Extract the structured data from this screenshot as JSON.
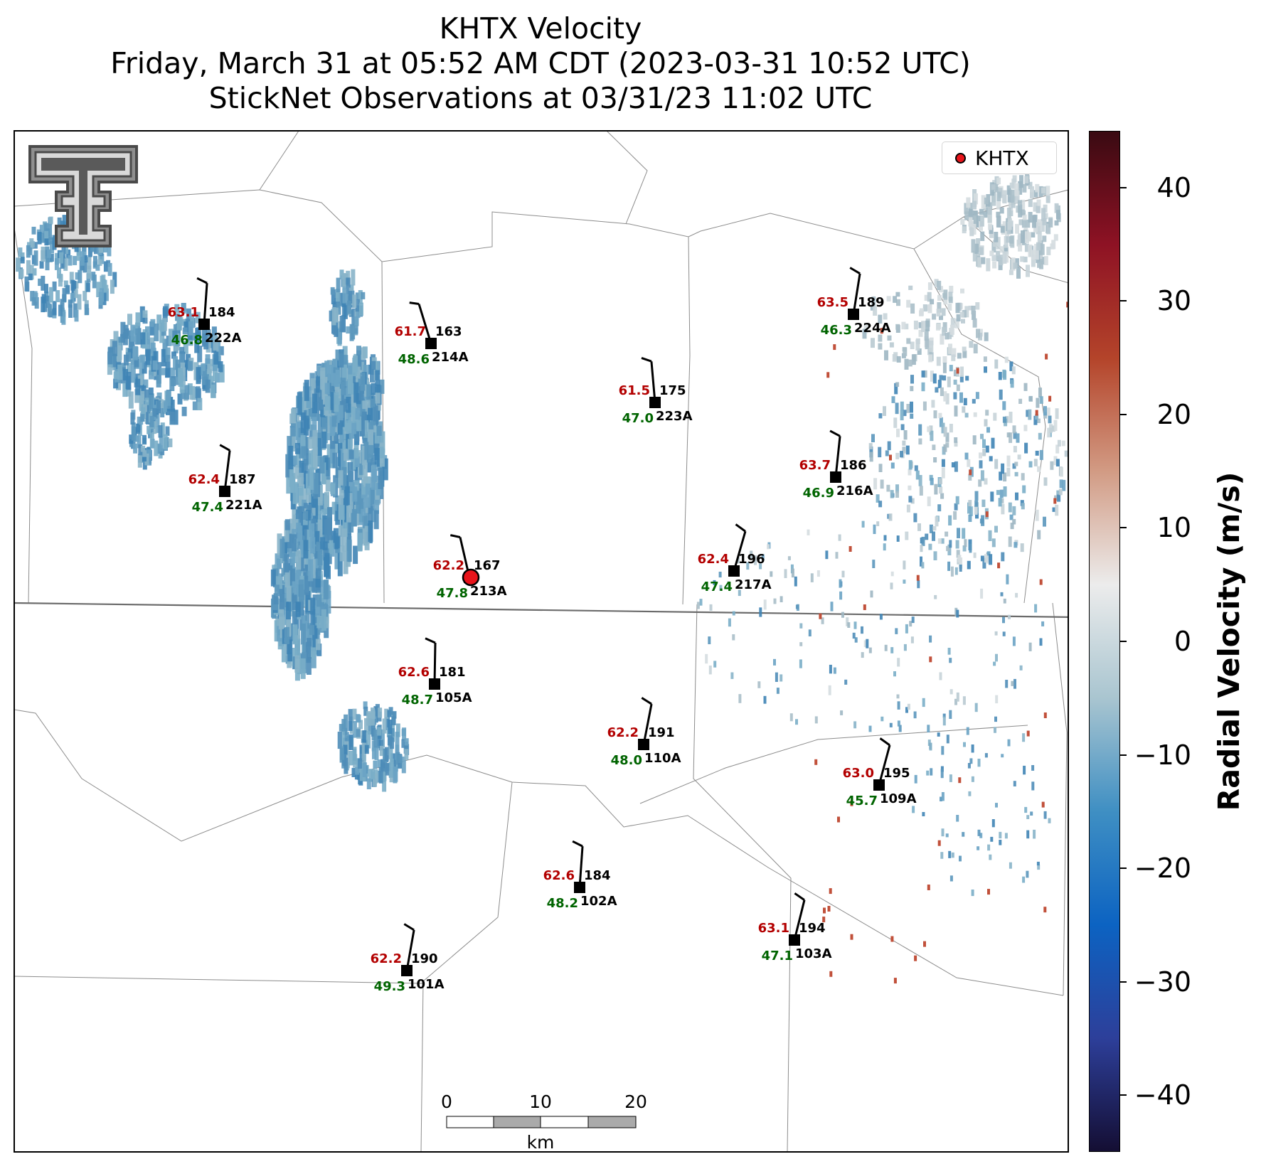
{
  "title": {
    "line1": "KHTX Velocity",
    "line2": "Friday, March 31 at 05:52 AM CDT (2023-03-31 10:52 UTC)",
    "line3": "StickNet Observations at 03/31/23 11:02 UTC"
  },
  "logo": {
    "name": "Texas Tech Double-T logo"
  },
  "legend": {
    "label": "KHTX",
    "marker_color": "#e8141b"
  },
  "colorbar": {
    "label": "Radial Velocity (m/s)",
    "range": [
      -45,
      45
    ],
    "ticks": [
      "40",
      "30",
      "20",
      "10",
      "0",
      "−10",
      "−20",
      "−30",
      "−40"
    ],
    "tick_values": [
      40,
      30,
      20,
      10,
      0,
      -10,
      -20,
      -30,
      -40
    ],
    "colors": [
      "#140e33",
      "#2d3f9a",
      "#0c63c2",
      "#3f8fc3",
      "#a9c5d0",
      "#ececec",
      "#d29b84",
      "#b4442a",
      "#8e1224",
      "#3a0a12"
    ]
  },
  "scalebar": {
    "ticks": [
      "0",
      "10",
      "20"
    ],
    "unit": "km"
  },
  "stations": [
    {
      "id": "222A",
      "temp": "63.1",
      "dew": "46.8",
      "dir": "184"
    },
    {
      "id": "214A",
      "temp": "61.7",
      "dew": "48.6",
      "dir": "163"
    },
    {
      "id": "223A",
      "temp": "61.5",
      "dew": "47.0",
      "dir": "175"
    },
    {
      "id": "224A",
      "temp": "63.5",
      "dew": "46.3",
      "dir": "189"
    },
    {
      "id": "221A",
      "temp": "62.4",
      "dew": "47.4",
      "dir": "187"
    },
    {
      "id": "216A",
      "temp": "63.7",
      "dew": "46.9",
      "dir": "186"
    },
    {
      "id": "213A",
      "temp": "62.2",
      "dew": "47.8",
      "dir": "167"
    },
    {
      "id": "217A",
      "temp": "62.4",
      "dew": "47.4",
      "dir": "196"
    },
    {
      "id": "105A",
      "temp": "62.6",
      "dew": "48.7",
      "dir": "181"
    },
    {
      "id": "110A",
      "temp": "62.2",
      "dew": "48.0",
      "dir": "191"
    },
    {
      "id": "109A",
      "temp": "63.0",
      "dew": "45.7",
      "dir": "195"
    },
    {
      "id": "102A",
      "temp": "62.6",
      "dew": "48.2",
      "dir": "184"
    },
    {
      "id": "103A",
      "temp": "63.1",
      "dew": "47.1",
      "dir": "194"
    },
    {
      "id": "101A",
      "temp": "62.2",
      "dew": "49.3",
      "dir": "190"
    }
  ],
  "styles": {
    "temp_color": "#b30000",
    "dew_color": "#006400",
    "label_color": "#000000"
  }
}
